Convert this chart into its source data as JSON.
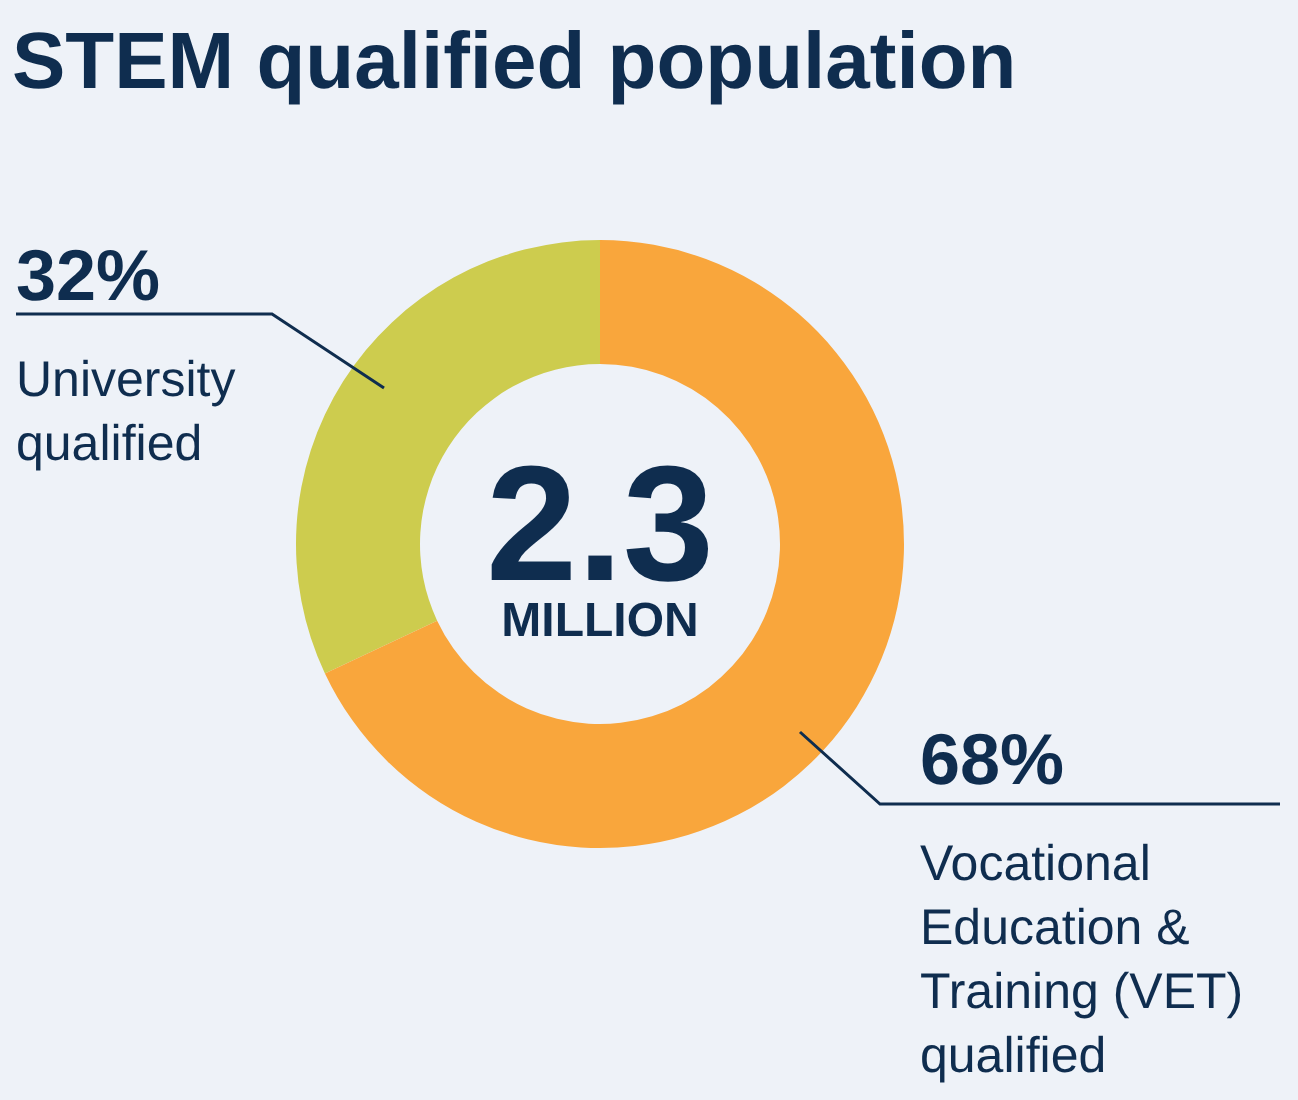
{
  "chart_data": {
    "type": "donut",
    "title": "STEM qualified population",
    "categories": [
      "University qualified",
      "Vocational Education & Training (VET) qualified"
    ],
    "values": [
      32,
      68
    ],
    "colors": [
      "#cdcc4e",
      "#f9a63c"
    ],
    "value_labels": [
      "32%",
      "68%"
    ],
    "annotations": [
      "2.3",
      "MILLION"
    ]
  }
}
